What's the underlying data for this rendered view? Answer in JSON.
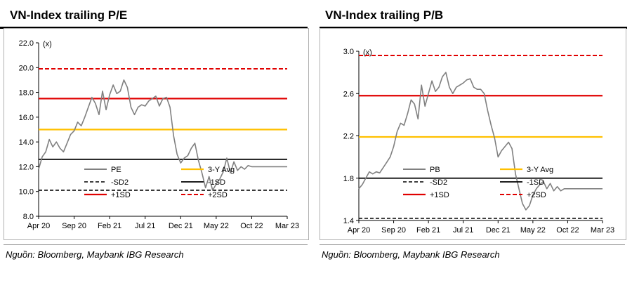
{
  "colors": {
    "series": "#808080",
    "avg": "#FFC000",
    "plus_one_sd": "#E00000",
    "plus_two_sd": "#E00000",
    "minus_sd": "#000000"
  },
  "panels": [
    {
      "title": "VN-Index trailing P/E",
      "source": "Nguồn: Bloomberg, Maybank IBG Research",
      "unit": "(x)"
    },
    {
      "title": "VN-Index trailing P/B",
      "source": "Nguồn: Bloomberg, Maybank IBG Research",
      "unit": "(x)"
    }
  ],
  "chart_data": [
    {
      "type": "line",
      "title": "VN-Index trailing P/E",
      "ylabel": "(x)",
      "ylim": [
        8.0,
        22.0
      ],
      "yticks": [
        "8.0",
        "10.0",
        "12.0",
        "14.0",
        "16.0",
        "18.0",
        "20.0",
        "22.0"
      ],
      "x_ticks": [
        "Apr 20",
        "Sep 20",
        "Feb 21",
        "Jul 21",
        "Dec 21",
        "May 22",
        "Oct 22",
        "Mar 23"
      ],
      "legend_position": "bottom",
      "legend": [
        "PE",
        "3-Y Avg",
        "-SD2",
        "-1SD",
        "+1SD",
        "+2SD"
      ],
      "reference_lines": [
        {
          "name": "3-Y Avg",
          "value": 15.0
        },
        {
          "name": "-1SD",
          "value": 12.6
        },
        {
          "name": "-SD2",
          "value": 10.1
        },
        {
          "name": "+1SD",
          "value": 17.5
        },
        {
          "name": "+2SD",
          "value": 19.9
        }
      ],
      "series": [
        {
          "name": "PE",
          "x": [
            0,
            0.5,
            1,
            1.5,
            2,
            2.5,
            3,
            3.5,
            4,
            4.5,
            5,
            5.5,
            6,
            6.5,
            7,
            7.5,
            8,
            8.5,
            9,
            9.5,
            10,
            10.5,
            11,
            11.5,
            12,
            12.5,
            13,
            13.5,
            14,
            14.5,
            15,
            15.5,
            16,
            16.5,
            17,
            17.5,
            18,
            18.5,
            19,
            19.5,
            20,
            20.5,
            21,
            21.5,
            22,
            22.5,
            23,
            23.5,
            24,
            24.5,
            25,
            25.5,
            26,
            26.5,
            27,
            27.5,
            28,
            28.5,
            29,
            29.5,
            30,
            30.5,
            31,
            31.5,
            32,
            32.5,
            33,
            33.5,
            34,
            34.5,
            35
          ],
          "values": [
            11.8,
            12.8,
            13.2,
            14.2,
            13.6,
            14.0,
            13.5,
            13.2,
            13.9,
            14.6,
            14.9,
            15.6,
            15.3,
            16.0,
            16.8,
            17.6,
            17.1,
            16.2,
            18.1,
            16.6,
            17.8,
            18.6,
            17.9,
            18.1,
            19.0,
            18.4,
            16.8,
            16.2,
            16.8,
            17.0,
            16.9,
            17.3,
            17.5,
            17.7,
            16.9,
            17.5,
            17.6,
            16.8,
            14.5,
            13.0,
            12.3,
            12.7,
            12.9,
            13.5,
            13.9,
            12.5,
            11.5,
            10.3,
            11.2,
            10.1,
            10.6,
            11.0,
            11.6,
            12.7,
            11.5,
            12.4,
            11.7,
            12.0,
            11.8,
            12.1,
            12.0,
            12.0,
            12.0,
            12.0,
            12.0,
            12.0,
            12.0,
            12.0,
            12.0,
            12.0,
            12.0
          ]
        }
      ],
      "x_span_months": 35
    },
    {
      "type": "line",
      "title": "VN-Index trailing P/B",
      "ylabel": "(x)",
      "ylim": [
        1.4,
        3.0
      ],
      "yticks": [
        "1.4",
        "1.8",
        "2.2",
        "2.6",
        "3.0"
      ],
      "x_ticks": [
        "Apr 20",
        "Sep 20",
        "Feb 21",
        "Jul 21",
        "Dec 21",
        "May 22",
        "Oct 22",
        "Mar 23"
      ],
      "legend_position": "bottom",
      "legend": [
        "PB",
        "3-Y Avg",
        "-SD2",
        "-1SD",
        "+1SD",
        "+2SD"
      ],
      "reference_lines": [
        {
          "name": "3-Y Avg",
          "value": 2.19
        },
        {
          "name": "-1SD",
          "value": 1.8
        },
        {
          "name": "-SD2",
          "value": 1.42
        },
        {
          "name": "+1SD",
          "value": 2.58
        },
        {
          "name": "+2SD",
          "value": 2.96
        }
      ],
      "series": [
        {
          "name": "PB",
          "x": [
            0,
            0.5,
            1,
            1.5,
            2,
            2.5,
            3,
            3.5,
            4,
            4.5,
            5,
            5.5,
            6,
            6.5,
            7,
            7.5,
            8,
            8.5,
            9,
            9.5,
            10,
            10.5,
            11,
            11.5,
            12,
            12.5,
            13,
            13.5,
            14,
            14.5,
            15,
            15.5,
            16,
            16.5,
            17,
            17.5,
            18,
            18.5,
            19,
            19.5,
            20,
            20.5,
            21,
            21.5,
            22,
            22.5,
            23,
            23.5,
            24,
            24.5,
            25,
            25.5,
            26,
            26.5,
            27,
            27.5,
            28,
            28.5,
            29,
            29.5,
            30,
            30.5,
            31,
            31.5,
            32,
            32.5,
            33,
            33.5,
            34,
            34.5,
            35
          ],
          "values": [
            1.7,
            1.74,
            1.8,
            1.86,
            1.84,
            1.86,
            1.85,
            1.9,
            1.95,
            2.0,
            2.1,
            2.24,
            2.32,
            2.3,
            2.41,
            2.54,
            2.5,
            2.36,
            2.68,
            2.48,
            2.6,
            2.72,
            2.62,
            2.66,
            2.76,
            2.8,
            2.66,
            2.6,
            2.66,
            2.68,
            2.7,
            2.73,
            2.74,
            2.66,
            2.64,
            2.64,
            2.6,
            2.44,
            2.3,
            2.18,
            2.0,
            2.06,
            2.1,
            2.14,
            2.08,
            1.84,
            1.7,
            1.56,
            1.5,
            1.54,
            1.64,
            1.7,
            1.74,
            1.77,
            1.7,
            1.75,
            1.68,
            1.72,
            1.68,
            1.7,
            1.7,
            1.7,
            1.7,
            1.7,
            1.7,
            1.7,
            1.7,
            1.7,
            1.7,
            1.7,
            1.7
          ]
        }
      ],
      "x_span_months": 35
    }
  ]
}
